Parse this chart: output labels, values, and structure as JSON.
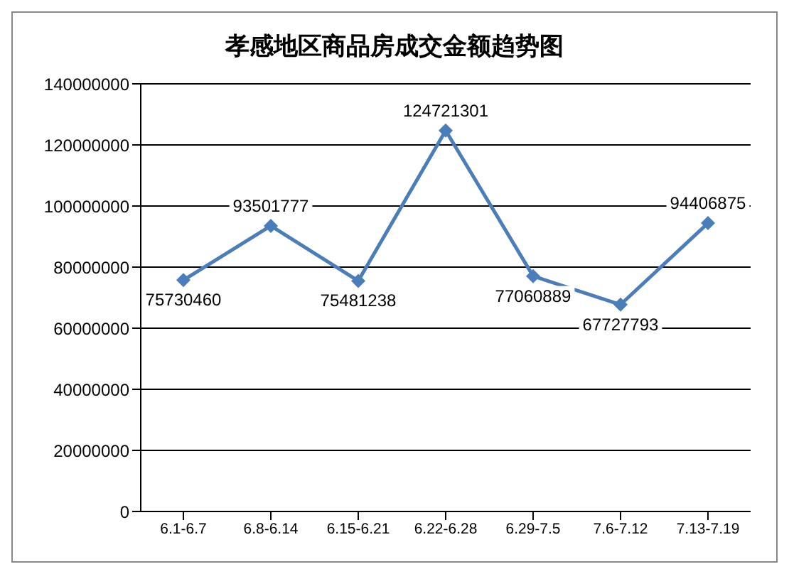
{
  "chart_data": {
    "type": "line",
    "title": "孝感地区商品房成交金额趋势图",
    "categories": [
      "6.1-6.7",
      "6.8-6.14",
      "6.15-6.21",
      "6.22-6.28",
      "6.29-7.5",
      "7.6-7.12",
      "7.13-7.19"
    ],
    "series": [
      {
        "color": "#4a7ebb",
        "values": [
          75730460,
          93501777,
          75481238,
          124721301,
          77060889,
          67727793,
          94406875
        ]
      }
    ],
    "ylim": [
      0,
      140000000
    ],
    "yticks": [
      0,
      20000000,
      40000000,
      60000000,
      80000000,
      100000000,
      120000000,
      140000000
    ],
    "grid": "y",
    "marker": "diamond",
    "line_style": "solid",
    "data_labels": true
  }
}
